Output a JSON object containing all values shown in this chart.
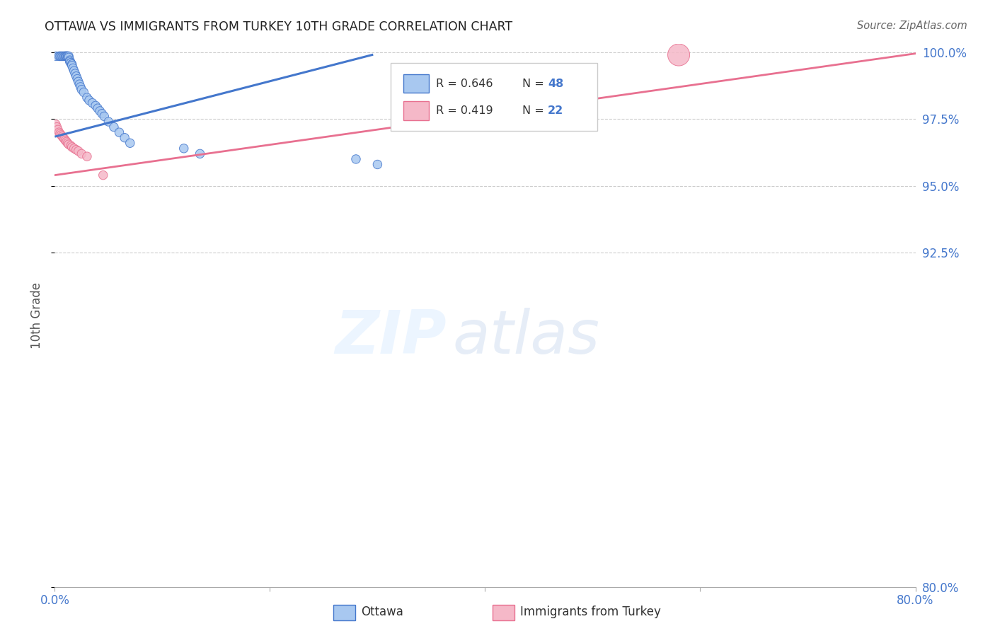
{
  "title": "OTTAWA VS IMMIGRANTS FROM TURKEY 10TH GRADE CORRELATION CHART",
  "source": "Source: ZipAtlas.com",
  "ylabel": "10th Grade",
  "legend_blue_r": "R = 0.646",
  "legend_blue_n": "48",
  "legend_pink_r": "R = 0.419",
  "legend_pink_n": "22",
  "legend_blue_label": "Ottawa",
  "legend_pink_label": "Immigrants from Turkey",
  "blue_color": "#a8c8f0",
  "pink_color": "#f5b8c8",
  "blue_line_color": "#4477cc",
  "pink_line_color": "#e87090",
  "blue_scatter_x": [
    0.001,
    0.004,
    0.005,
    0.006,
    0.007,
    0.008,
    0.009,
    0.01,
    0.01,
    0.011,
    0.011,
    0.012,
    0.012,
    0.013,
    0.013,
    0.014,
    0.014,
    0.015,
    0.015,
    0.016,
    0.016,
    0.017,
    0.018,
    0.019,
    0.02,
    0.021,
    0.022,
    0.023,
    0.024,
    0.025,
    0.027,
    0.03,
    0.032,
    0.035,
    0.038,
    0.04,
    0.042,
    0.044,
    0.046,
    0.05,
    0.055,
    0.06,
    0.065,
    0.07,
    0.12,
    0.135,
    0.28,
    0.3
  ],
  "blue_scatter_y": [
    0.9985,
    0.9985,
    0.9985,
    0.9985,
    0.9985,
    0.9985,
    0.9985,
    0.9985,
    0.9985,
    0.9985,
    0.9985,
    0.9985,
    0.9985,
    0.9985,
    0.998,
    0.997,
    0.9965,
    0.996,
    0.996,
    0.9955,
    0.995,
    0.994,
    0.993,
    0.992,
    0.991,
    0.99,
    0.989,
    0.988,
    0.987,
    0.986,
    0.985,
    0.983,
    0.982,
    0.981,
    0.98,
    0.979,
    0.978,
    0.977,
    0.976,
    0.974,
    0.972,
    0.97,
    0.968,
    0.966,
    0.964,
    0.962,
    0.96,
    0.958
  ],
  "blue_scatter_sizes": [
    80,
    80,
    80,
    80,
    80,
    80,
    80,
    80,
    80,
    80,
    80,
    80,
    80,
    80,
    80,
    80,
    80,
    80,
    80,
    80,
    80,
    80,
    80,
    80,
    80,
    80,
    80,
    80,
    80,
    80,
    80,
    80,
    80,
    80,
    80,
    80,
    80,
    80,
    80,
    80,
    80,
    80,
    80,
    80,
    80,
    80,
    80,
    80
  ],
  "pink_scatter_x": [
    0.001,
    0.002,
    0.003,
    0.004,
    0.005,
    0.006,
    0.007,
    0.008,
    0.009,
    0.01,
    0.011,
    0.012,
    0.013,
    0.015,
    0.016,
    0.018,
    0.02,
    0.022,
    0.025,
    0.03,
    0.045,
    0.58
  ],
  "pink_scatter_y": [
    0.973,
    0.972,
    0.971,
    0.97,
    0.9695,
    0.969,
    0.9685,
    0.968,
    0.9675,
    0.967,
    0.9665,
    0.966,
    0.9655,
    0.965,
    0.9645,
    0.964,
    0.9635,
    0.963,
    0.962,
    0.961,
    0.954,
    0.999
  ],
  "pink_scatter_sizes": [
    80,
    80,
    80,
    80,
    80,
    80,
    80,
    80,
    80,
    80,
    80,
    80,
    80,
    80,
    80,
    80,
    80,
    80,
    80,
    80,
    80,
    500
  ],
  "blue_trendline_x": [
    0.001,
    0.295
  ],
  "blue_trendline_y": [
    0.9685,
    0.999
  ],
  "pink_trendline_x": [
    0.0,
    0.8
  ],
  "pink_trendline_y": [
    0.954,
    0.9995
  ],
  "xlim": [
    0.0,
    0.8
  ],
  "ylim": [
    0.8,
    1.003
  ],
  "ytick_values": [
    1.0,
    0.975,
    0.95,
    0.925,
    0.8
  ],
  "ytick_labels": [
    "100.0%",
    "97.5%",
    "95.0%",
    "92.5%",
    "80.0%"
  ],
  "xtick_positions": [
    0.0,
    0.2,
    0.4,
    0.6,
    0.8
  ],
  "xtick_label_left": "0.0%",
  "xtick_label_right": "80.0%",
  "watermark_zip": "ZIP",
  "watermark_atlas": "atlas",
  "background_color": "#ffffff",
  "grid_color": "#cccccc"
}
